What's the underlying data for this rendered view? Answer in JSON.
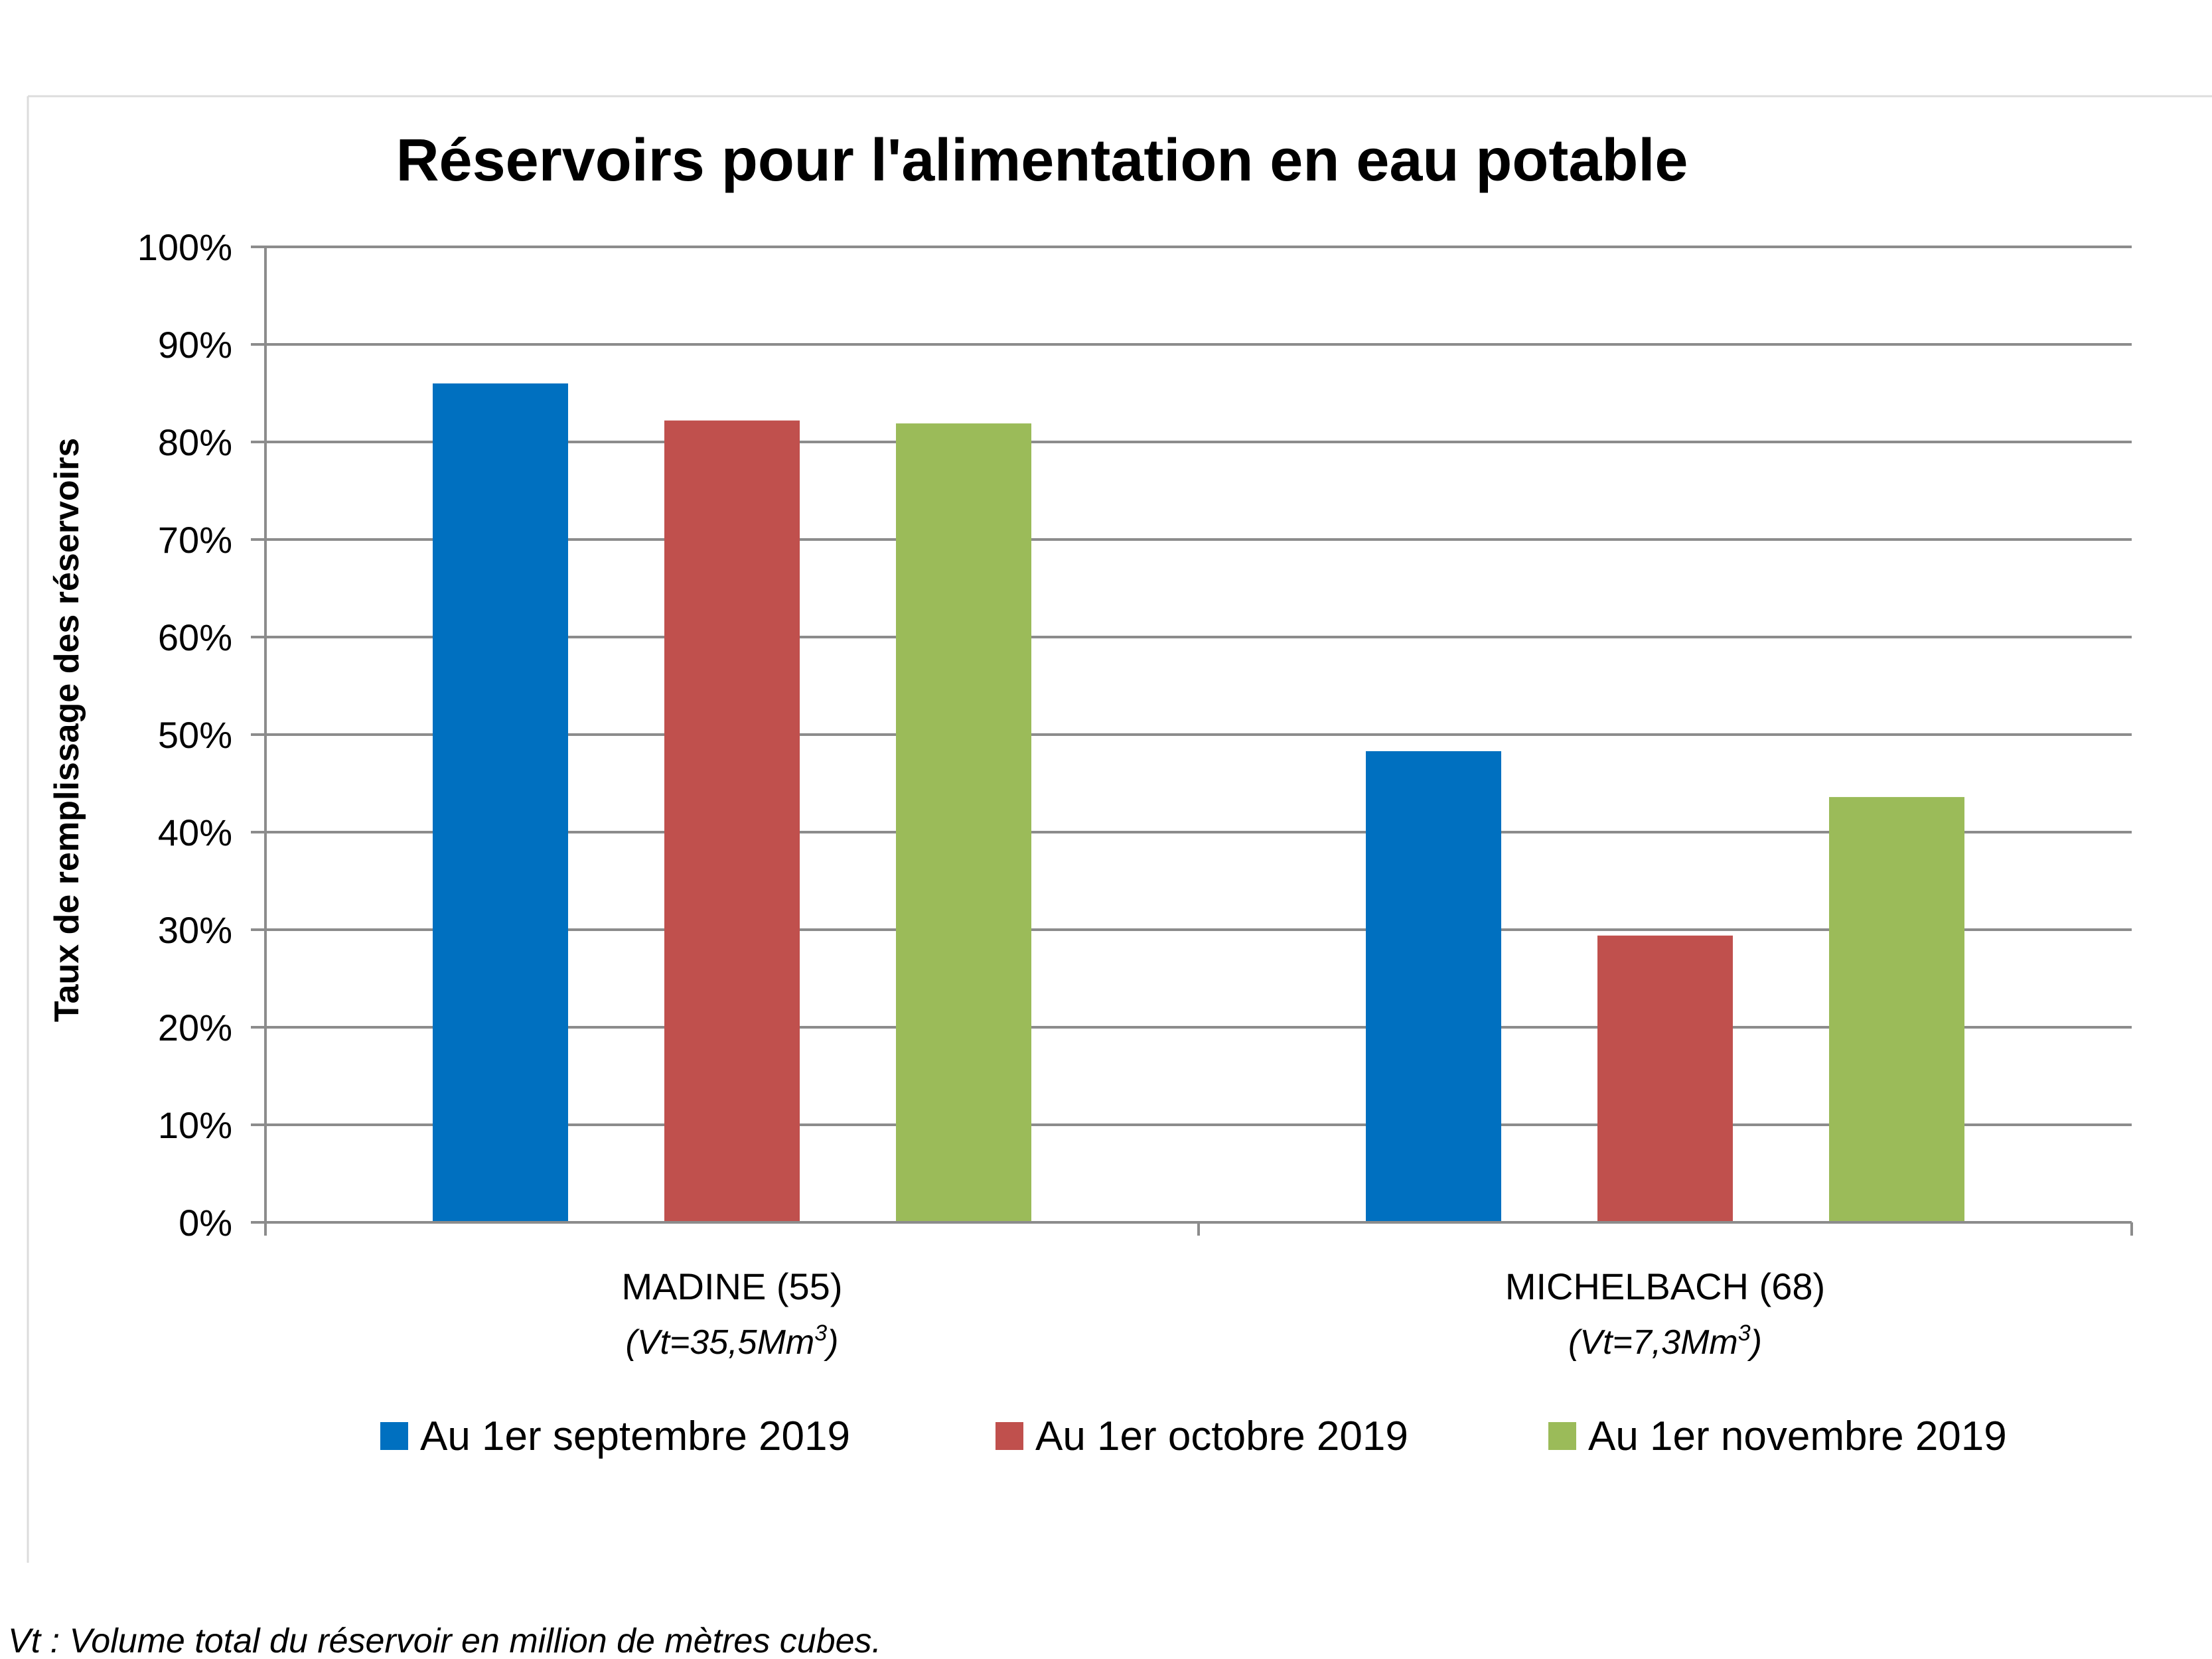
{
  "chart_data": {
    "type": "bar",
    "title": "Réservoirs pour l'alimentation en eau potable",
    "ylabel": "Taux de remplissage des réservoirs",
    "xlabel": "",
    "ylim": [
      0,
      100
    ],
    "y_ticks": [
      "0%",
      "10%",
      "20%",
      "30%",
      "40%",
      "50%",
      "60%",
      "70%",
      "80%",
      "90%",
      "100%"
    ],
    "categories": [
      "MADINE (55)",
      "MICHELBACH (68)"
    ],
    "category_subtitles": [
      {
        "prefix": "(Vt=35,5Mm",
        "sup": "3",
        "suffix": ")"
      },
      {
        "prefix": "(Vt=7,3Mm",
        "sup": "3",
        "suffix": ")"
      }
    ],
    "series": [
      {
        "name": "Au 1er septembre 2019",
        "color": "#0070c0",
        "values": [
          86,
          48.3
        ]
      },
      {
        "name": "Au 1er octobre 2019",
        "color": "#c0504d",
        "values": [
          82.2,
          29.4
        ]
      },
      {
        "name": "Au 1er novembre 2019",
        "color": "#9bbb59",
        "values": [
          81.9,
          43.6
        ]
      }
    ],
    "grid": true,
    "legend_position": "bottom"
  },
  "footnote": "Vt : Volume total du réservoir en million de mètres cubes."
}
